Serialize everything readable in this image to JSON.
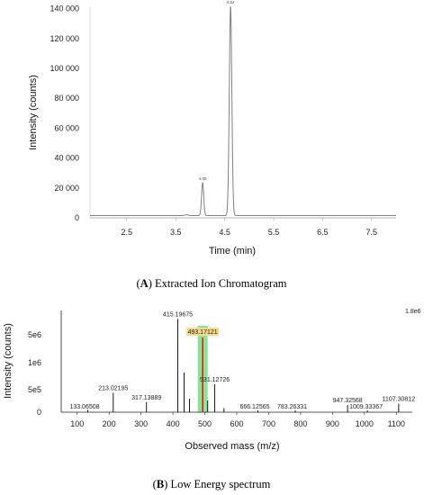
{
  "panel_a_caption": {
    "letter": "A",
    "text": "Extracted Ion Chromatogram"
  },
  "panel_b_caption": {
    "letter": "B",
    "text": "Low Energy spectrum"
  },
  "chart_data": [
    {
      "type": "line",
      "title": "",
      "xlabel": "Time (min)",
      "ylabel": "Intensity (counts)",
      "xlim": [
        1.75,
        8.0
      ],
      "ylim": [
        0,
        141000
      ],
      "xticks": [
        2.5,
        3.5,
        4.5,
        5.5,
        6.5,
        7.5
      ],
      "xtick_labels": [
        "2.5",
        "3.5",
        "4.5",
        "5.5",
        "6.5",
        "7.5"
      ],
      "yticks": [
        0,
        20000,
        40000,
        60000,
        80000,
        100000,
        120000,
        140000
      ],
      "ytick_labels": [
        "0",
        "20 000",
        "40 000",
        "60 000",
        "80 000",
        "100 000",
        "120 000",
        "140 000"
      ],
      "grid": false,
      "line_color": "#808080",
      "peaks": [
        {
          "rt": 3.72,
          "height": 600,
          "width": 0.03,
          "label": ""
        },
        {
          "rt": 4.05,
          "height": 22000,
          "width": 0.022,
          "label": "4.05"
        },
        {
          "rt": 4.62,
          "height": 140000,
          "width": 0.026,
          "label": "4.62"
        }
      ],
      "baseline": 1500
    },
    {
      "type": "bar",
      "title": "",
      "xlabel": "Observed mass (m/z)",
      "ylabel": "Intensity (counts)",
      "xlim": [
        50,
        1150
      ],
      "ylim": [
        0,
        6000000
      ],
      "xticks": [
        100,
        200,
        300,
        400,
        500,
        600,
        700,
        800,
        900,
        1000,
        1100
      ],
      "xtick_labels": [
        "100",
        "200",
        "300",
        "400",
        "500",
        "600",
        "700",
        "800",
        "900",
        "1000",
        "1100"
      ],
      "yticks": [
        0,
        500000,
        1000000,
        5000000
      ],
      "ytick_labels": [
        "0",
        "5e5",
        "1e6",
        "5e6"
      ],
      "scale_label": "1.8e6",
      "bar_color": "#000000",
      "highlight_peak": 493.17121,
      "highlight_band_color": "#7fe08a",
      "highlight_line_color": "#e02020",
      "highlight_label_bg": "#f5d98a",
      "peaks": [
        {
          "mz": 133.06508,
          "intensity": 50000,
          "label": "133.06508"
        },
        {
          "mz": 213.02195,
          "intensity": 430000,
          "label": "213.02195"
        },
        {
          "mz": 317.13889,
          "intensity": 220000,
          "label": "317.13889"
        },
        {
          "mz": 415.19675,
          "intensity": 5800000,
          "label": "415.19675"
        },
        {
          "mz": 435.0,
          "intensity": 820000,
          "label": ""
        },
        {
          "mz": 452.0,
          "intensity": 300000,
          "label": ""
        },
        {
          "mz": 493.17121,
          "intensity": 4600000,
          "label": "493.17121"
        },
        {
          "mz": 509.0,
          "intensity": 260000,
          "label": ""
        },
        {
          "mz": 531.12726,
          "intensity": 600000,
          "label": "531.12726"
        },
        {
          "mz": 560.0,
          "intensity": 90000,
          "label": ""
        },
        {
          "mz": 666.12565,
          "intensity": 40000,
          "label": "666.12565"
        },
        {
          "mz": 783.26331,
          "intensity": 40000,
          "label": "783.26331"
        },
        {
          "mz": 947.32568,
          "intensity": 160000,
          "label": "947.32568"
        },
        {
          "mz": 1009.33367,
          "intensity": 40000,
          "label": "1009.33367"
        },
        {
          "mz": 1107.30812,
          "intensity": 190000,
          "label": "1107.30812"
        }
      ]
    }
  ]
}
